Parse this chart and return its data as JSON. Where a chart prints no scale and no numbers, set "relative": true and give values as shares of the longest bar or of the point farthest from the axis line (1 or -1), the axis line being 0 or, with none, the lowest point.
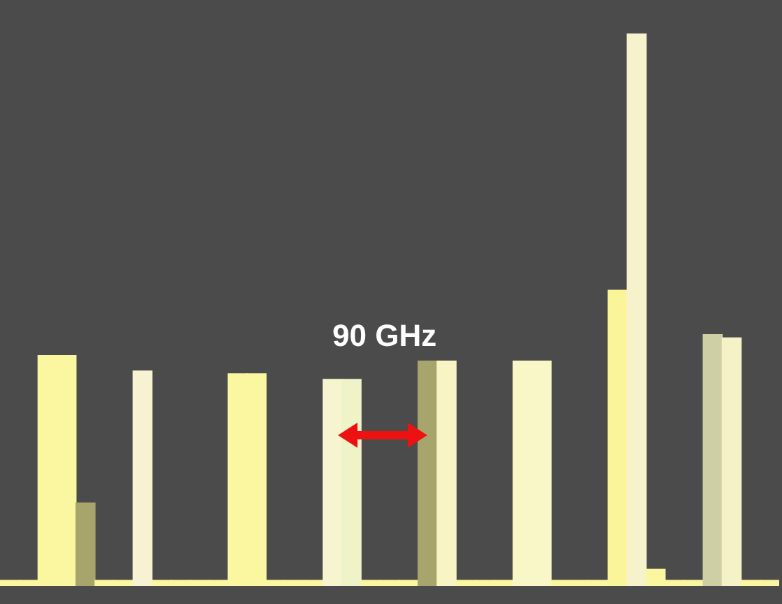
{
  "chart_data": {
    "type": "bar",
    "relative": true,
    "categories": [
      null,
      null,
      null,
      null,
      null,
      null,
      null,
      null,
      null,
      null,
      null,
      null,
      null,
      null,
      null,
      null,
      null,
      null,
      null,
      null,
      null,
      null,
      null,
      null,
      null,
      null,
      null,
      null,
      null,
      null,
      null,
      null,
      null,
      null,
      null,
      null,
      null,
      null,
      null,
      null,
      null
    ],
    "values": [
      0.01,
      0.01,
      0.417,
      0.417,
      0.15,
      0.01,
      0.01,
      0.389,
      0.01,
      0.01,
      0.01,
      0.01,
      0.384,
      0.384,
      0.01,
      0.01,
      0.01,
      0.374,
      0.374,
      0.01,
      0.01,
      0.01,
      0.407,
      0.407,
      0.01,
      0.01,
      0.01,
      0.407,
      0.407,
      0.01,
      0.01,
      0.01,
      0.535,
      1,
      0.03,
      0.01,
      0.01,
      0.455,
      0.449,
      0.01,
      0.01
    ],
    "colors": [
      "#fbf7a0",
      "#fbf7a0",
      "#fbf7a0",
      "#fbf7a0",
      "#a8a56c",
      "#fbf7a0",
      "#fbf7a0",
      "#f7f2d2",
      "#fbf7a0",
      "#fbf7a0",
      "#fbf7a0",
      "#fbf7a0",
      "#fbf7a0",
      "#fbf7a0",
      "#fbf7a0",
      "#fbf7a0",
      "#fbf7a0",
      "#f7f5d0",
      "#eef3c8",
      "#fbf7a0",
      "#fbf7a0",
      "#fbf7a0",
      "#a8a56c",
      "#f9f4c4",
      "#fbf7a0",
      "#fbf7a0",
      "#fbf7a0",
      "#f9f6c8",
      "#f9f6c8",
      "#fbf7a0",
      "#fbf7a0",
      "#fbf7a0",
      "#fbf59a",
      "#f6f3cc",
      "#fbf7a0",
      "#fbf7a0",
      "#fbf7a0",
      "#cfcfa6",
      "#f5f2c8",
      "#fbf7a0",
      "#fbf7a0"
    ],
    "annotations": [
      "90 GHz"
    ]
  }
}
